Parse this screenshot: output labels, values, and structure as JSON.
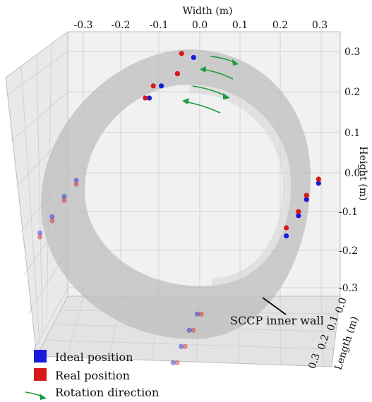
{
  "chart_data": {
    "type": "scatter",
    "projection": "3d",
    "xlabel": "Width (m)",
    "ylabel": "Length (m)",
    "zlabel": "Height (m)",
    "x_ticks": [
      "-0.3",
      "-0.2",
      "-0.1",
      "0.0",
      "0.1",
      "0.2",
      "0.3"
    ],
    "y_ticks": [
      "0.0",
      "0.1",
      "0.2",
      "0.3"
    ],
    "z_ticks": [
      "0.3",
      "0.2",
      "0.1",
      "0.0",
      "-0.1",
      "-0.2",
      "-0.3"
    ],
    "xlim": [
      -0.35,
      0.35
    ],
    "ylim": [
      0.0,
      0.3
    ],
    "zlim": [
      -0.35,
      0.35
    ],
    "grid": true,
    "annotations": [
      {
        "text": "SCCP inner wall"
      }
    ],
    "legend": {
      "placement": "bottom-left",
      "entries": [
        {
          "label": "Ideal position",
          "color": "#1a1adb",
          "marker": "square"
        },
        {
          "label": "Real position",
          "color": "#d81818",
          "marker": "square"
        },
        {
          "label": "Rotation direction",
          "color": "#1a9a3a",
          "marker": "arrow"
        }
      ]
    },
    "series": [
      {
        "name": "Ideal position",
        "color": "#1a1adb",
        "points": [
          {
            "x": -0.01,
            "y": 0.05,
            "z": 0.3
          },
          {
            "x": -0.05,
            "y": 0.05,
            "z": 0.26
          },
          {
            "x": -0.09,
            "y": 0.05,
            "z": 0.23
          },
          {
            "x": -0.12,
            "y": 0.05,
            "z": 0.2
          },
          {
            "x": 0.3,
            "y": 0.05,
            "z": -0.01
          },
          {
            "x": 0.27,
            "y": 0.05,
            "z": -0.05
          },
          {
            "x": 0.25,
            "y": 0.05,
            "z": -0.09
          },
          {
            "x": 0.22,
            "y": 0.05,
            "z": -0.14
          },
          {
            "x": -0.28,
            "y": 0.25,
            "z": 0.06
          },
          {
            "x": -0.31,
            "y": 0.25,
            "z": 0.02
          },
          {
            "x": -0.34,
            "y": 0.25,
            "z": -0.03
          },
          {
            "x": -0.37,
            "y": 0.25,
            "z": -0.07
          },
          {
            "x": 0.02,
            "y": 0.25,
            "z": -0.27
          },
          {
            "x": 0.0,
            "y": 0.25,
            "z": -0.31
          },
          {
            "x": -0.02,
            "y": 0.25,
            "z": -0.35
          },
          {
            "x": -0.04,
            "y": 0.25,
            "z": -0.39
          }
        ]
      },
      {
        "name": "Real position",
        "color": "#d81818",
        "points": [
          {
            "x": -0.04,
            "y": 0.05,
            "z": 0.31
          },
          {
            "x": -0.05,
            "y": 0.05,
            "z": 0.26
          },
          {
            "x": -0.11,
            "y": 0.05,
            "z": 0.23
          },
          {
            "x": -0.13,
            "y": 0.05,
            "z": 0.2
          },
          {
            "x": 0.3,
            "y": 0.05,
            "z": 0.0
          },
          {
            "x": 0.27,
            "y": 0.05,
            "z": -0.04
          },
          {
            "x": 0.25,
            "y": 0.05,
            "z": -0.08
          },
          {
            "x": 0.22,
            "y": 0.05,
            "z": -0.12
          },
          {
            "x": -0.28,
            "y": 0.25,
            "z": 0.05
          },
          {
            "x": -0.31,
            "y": 0.25,
            "z": 0.01
          },
          {
            "x": -0.34,
            "y": 0.25,
            "z": -0.04
          },
          {
            "x": -0.37,
            "y": 0.25,
            "z": -0.08
          },
          {
            "x": 0.03,
            "y": 0.25,
            "z": -0.27
          },
          {
            "x": 0.01,
            "y": 0.25,
            "z": -0.31
          },
          {
            "x": -0.01,
            "y": 0.25,
            "z": -0.35
          },
          {
            "x": -0.03,
            "y": 0.25,
            "z": -0.39
          }
        ]
      }
    ]
  }
}
